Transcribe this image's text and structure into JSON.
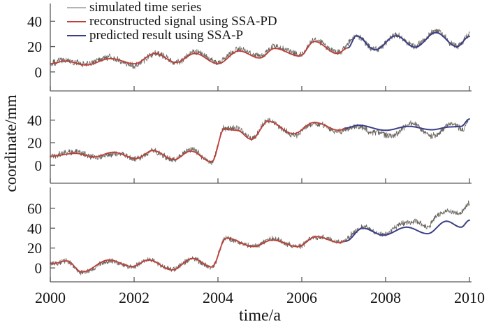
{
  "chart_data": {
    "type": "line",
    "title": "",
    "xlabel": "time/a",
    "ylabel": "coordinate/mm",
    "x_range": [
      2000,
      2010
    ],
    "x_ticks": [
      2000,
      2002,
      2004,
      2006,
      2008,
      2010
    ],
    "grid": false,
    "legend_position": "top-left",
    "legend": [
      "simulated time series",
      "reconstructed signal using SSA-PD",
      "predicted result using SSA-P"
    ],
    "colors": {
      "simulated_line": "#6b665f",
      "simulated_legend": "#b6b4b2",
      "reconstructed": "#bf3f38",
      "predicted": "#3a3e86",
      "axis": "#5a5a5a",
      "text": "#141414"
    },
    "noise_seed": 1234,
    "subplots": [
      {
        "name": "component-1",
        "ylim": [
          -15,
          54
        ],
        "y_ticks": [
          0,
          20,
          40
        ],
        "noise_amplitude": 2.2,
        "series": {
          "reconstructed": [
            [
              2000.0,
              6.5
            ],
            [
              2000.35,
              8.5
            ],
            [
              2000.85,
              5.5
            ],
            [
              2001.45,
              10.5
            ],
            [
              2002.0,
              6.5
            ],
            [
              2002.5,
              14.5
            ],
            [
              2003.0,
              7.5
            ],
            [
              2003.45,
              14.5
            ],
            [
              2004.0,
              6.5
            ],
            [
              2004.5,
              16.5
            ],
            [
              2005.0,
              11
            ],
            [
              2005.35,
              18.5
            ],
            [
              2005.95,
              12.5
            ],
            [
              2006.3,
              24
            ],
            [
              2006.85,
              14.5
            ],
            [
              2007.1,
              19
            ]
          ],
          "predicted": [
            [
              2007.1,
              19
            ],
            [
              2007.3,
              28.5
            ],
            [
              2007.75,
              17.5
            ],
            [
              2008.25,
              28.5
            ],
            [
              2008.7,
              19.5
            ],
            [
              2009.2,
              31
            ],
            [
              2009.7,
              20
            ],
            [
              2010.0,
              28
            ]
          ],
          "simulated": [
            [
              2000.0,
              6.5
            ],
            [
              2000.35,
              8.5
            ],
            [
              2000.85,
              5.5
            ],
            [
              2001.45,
              10.5
            ],
            [
              2002.0,
              6.5
            ],
            [
              2002.5,
              14.5
            ],
            [
              2003.0,
              7.5
            ],
            [
              2003.45,
              14.5
            ],
            [
              2004.0,
              6.5
            ],
            [
              2004.5,
              16.5
            ],
            [
              2005.0,
              11
            ],
            [
              2005.35,
              18.5
            ],
            [
              2005.95,
              12.5
            ],
            [
              2006.3,
              24
            ],
            [
              2006.85,
              14.5
            ],
            [
              2007.3,
              28.5
            ],
            [
              2007.75,
              17.5
            ],
            [
              2008.25,
              28.5
            ],
            [
              2008.7,
              19.5
            ],
            [
              2009.2,
              31
            ],
            [
              2009.7,
              20
            ],
            [
              2010.0,
              28
            ]
          ]
        }
      },
      {
        "name": "component-2",
        "ylim": [
          -16,
          61
        ],
        "y_ticks": [
          0,
          20,
          40
        ],
        "noise_amplitude": 2.4,
        "series": {
          "reconstructed": [
            [
              2000.0,
              8
            ],
            [
              2000.6,
              10.5
            ],
            [
              2001.05,
              7.5
            ],
            [
              2001.5,
              11.5
            ],
            [
              2002.05,
              6
            ],
            [
              2002.45,
              13
            ],
            [
              2002.95,
              5
            ],
            [
              2003.35,
              12.5
            ],
            [
              2003.85,
              3
            ],
            [
              2004.15,
              32
            ],
            [
              2004.45,
              31
            ],
            [
              2004.8,
              23
            ],
            [
              2005.2,
              39
            ],
            [
              2005.8,
              28
            ],
            [
              2006.3,
              38
            ],
            [
              2006.9,
              31
            ],
            [
              2007.05,
              33
            ]
          ],
          "predicted": [
            [
              2007.05,
              33
            ],
            [
              2007.35,
              35.5
            ],
            [
              2008.0,
              31
            ],
            [
              2008.55,
              34.5
            ],
            [
              2009.1,
              31.5
            ],
            [
              2009.55,
              34
            ],
            [
              2009.8,
              34.5
            ],
            [
              2010.0,
              41
            ]
          ],
          "simulated": [
            [
              2000.0,
              8
            ],
            [
              2000.6,
              10.5
            ],
            [
              2001.05,
              7.5
            ],
            [
              2001.5,
              11.5
            ],
            [
              2002.05,
              6
            ],
            [
              2002.45,
              13
            ],
            [
              2002.95,
              5
            ],
            [
              2003.35,
              12.5
            ],
            [
              2003.85,
              1.5
            ],
            [
              2004.15,
              32
            ],
            [
              2004.45,
              31
            ],
            [
              2004.8,
              23
            ],
            [
              2005.2,
              39
            ],
            [
              2005.8,
              28
            ],
            [
              2006.3,
              38
            ],
            [
              2006.9,
              31
            ],
            [
              2007.35,
              36
            ],
            [
              2007.7,
              30
            ],
            [
              2008.2,
              26.5
            ],
            [
              2008.6,
              37
            ],
            [
              2009.15,
              25.5
            ],
            [
              2009.6,
              36
            ],
            [
              2009.85,
              30
            ],
            [
              2010.0,
              41
            ]
          ]
        }
      },
      {
        "name": "component-3",
        "ylim": [
          -14,
          81
        ],
        "y_ticks": [
          0,
          20,
          40,
          60
        ],
        "noise_amplitude": 2.4,
        "series": {
          "reconstructed": [
            [
              2000.0,
              4
            ],
            [
              2000.4,
              7
            ],
            [
              2000.75,
              -4
            ],
            [
              2001.4,
              8
            ],
            [
              2001.95,
              1.5
            ],
            [
              2002.35,
              8
            ],
            [
              2002.9,
              -2
            ],
            [
              2003.4,
              9.5
            ],
            [
              2003.85,
              1
            ],
            [
              2004.2,
              30
            ],
            [
              2004.85,
              21.5
            ],
            [
              2005.3,
              28
            ],
            [
              2005.9,
              21.5
            ],
            [
              2006.35,
              31.5
            ],
            [
              2006.9,
              25.5
            ],
            [
              2007.05,
              27
            ]
          ],
          "predicted": [
            [
              2007.05,
              27
            ],
            [
              2007.45,
              40
            ],
            [
              2007.95,
              33
            ],
            [
              2008.5,
              41
            ],
            [
              2009.0,
              34.5
            ],
            [
              2009.45,
              47
            ],
            [
              2009.8,
              41
            ],
            [
              2010.0,
              48
            ]
          ],
          "simulated": [
            [
              2000.0,
              4
            ],
            [
              2000.4,
              7
            ],
            [
              2000.75,
              -4
            ],
            [
              2001.4,
              8
            ],
            [
              2001.95,
              1.5
            ],
            [
              2002.35,
              8
            ],
            [
              2002.9,
              -2
            ],
            [
              2003.4,
              9.5
            ],
            [
              2003.85,
              1
            ],
            [
              2004.2,
              30
            ],
            [
              2004.85,
              21.5
            ],
            [
              2005.3,
              28
            ],
            [
              2005.9,
              21.5
            ],
            [
              2006.35,
              31.5
            ],
            [
              2006.9,
              25.5
            ],
            [
              2007.45,
              41
            ],
            [
              2007.95,
              32
            ],
            [
              2008.45,
              44
            ],
            [
              2008.7,
              46
            ],
            [
              2009.0,
              40
            ],
            [
              2009.25,
              52
            ],
            [
              2009.5,
              56
            ],
            [
              2009.75,
              53
            ],
            [
              2010.0,
              64
            ]
          ]
        }
      }
    ]
  }
}
